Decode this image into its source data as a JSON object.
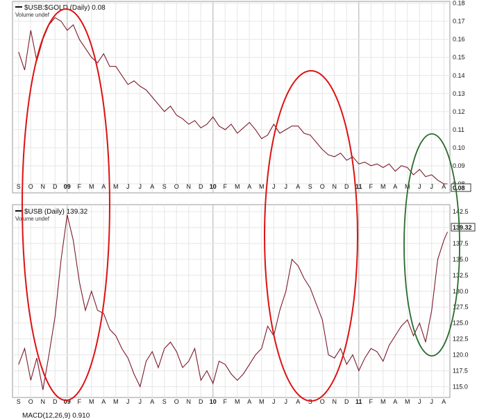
{
  "chart_data": [
    {
      "type": "line",
      "title": "$USB:$GOLD (Daily) 0.08",
      "subtitle": "Volume undef",
      "last_value_label": "0.08",
      "color": "#7a1a2a",
      "x_labels": [
        "S",
        "O",
        "N",
        "D",
        "09",
        "F",
        "M",
        "A",
        "M",
        "J",
        "J",
        "A",
        "S",
        "O",
        "N",
        "D",
        "10",
        "F",
        "M",
        "A",
        "M",
        "J",
        "J",
        "A",
        "S",
        "O",
        "N",
        "D",
        "11",
        "F",
        "M",
        "A",
        "M",
        "J",
        "J",
        "A"
      ],
      "y_ticks": [
        "0.18",
        "0.17",
        "0.16",
        "0.15",
        "0.14",
        "0.13",
        "0.12",
        "0.11",
        "0.10",
        "0.09",
        "0.08"
      ],
      "ylim": [
        0.075,
        0.181
      ],
      "series": [
        {
          "x": [
            0,
            0.5,
            1,
            1.5,
            2,
            2.5,
            3,
            3.5,
            4,
            4.5,
            5,
            5.5,
            6,
            6.5,
            7,
            7.5,
            8,
            8.5,
            9,
            9.5,
            10,
            10.5,
            11,
            11.5,
            12,
            12.5,
            13,
            13.5,
            14,
            14.5,
            15,
            15.5,
            16,
            16.5,
            17,
            17.5,
            18,
            18.5,
            19,
            19.5,
            20,
            20.5,
            21,
            21.5,
            22,
            22.5,
            23,
            23.5,
            24,
            24.5,
            25,
            25.5,
            26,
            26.5,
            27,
            27.5,
            28,
            28.5,
            29,
            29.5,
            30,
            30.5,
            31,
            31.5,
            32,
            32.5,
            33,
            33.5,
            34,
            34.5,
            35,
            35.3
          ],
          "values": [
            0.153,
            0.143,
            0.165,
            0.148,
            0.16,
            0.168,
            0.172,
            0.17,
            0.165,
            0.168,
            0.16,
            0.155,
            0.15,
            0.147,
            0.152,
            0.145,
            0.145,
            0.14,
            0.135,
            0.137,
            0.134,
            0.132,
            0.128,
            0.124,
            0.12,
            0.123,
            0.118,
            0.116,
            0.113,
            0.115,
            0.111,
            0.113,
            0.117,
            0.112,
            0.11,
            0.113,
            0.108,
            0.111,
            0.114,
            0.11,
            0.105,
            0.107,
            0.113,
            0.108,
            0.11,
            0.112,
            0.112,
            0.108,
            0.107,
            0.103,
            0.099,
            0.096,
            0.095,
            0.097,
            0.093,
            0.095,
            0.091,
            0.092,
            0.09,
            0.091,
            0.089,
            0.091,
            0.087,
            0.09,
            0.089,
            0.085,
            0.088,
            0.084,
            0.085,
            0.082,
            0.08,
            0.08
          ]
        }
      ]
    },
    {
      "type": "line",
      "title": "$USB (Daily) 139.32",
      "subtitle": "Volume undef",
      "last_value_label": "139.32",
      "color": "#7a1a2a",
      "x_labels": [
        "S",
        "O",
        "N",
        "D",
        "09",
        "F",
        "M",
        "A",
        "M",
        "J",
        "J",
        "A",
        "S",
        "O",
        "N",
        "D",
        "10",
        "F",
        "M",
        "A",
        "M",
        "J",
        "J",
        "A",
        "S",
        "O",
        "N",
        "D",
        "11",
        "F",
        "M",
        "A",
        "M",
        "J",
        "J",
        "A"
      ],
      "y_ticks": [
        "142.5",
        "140.0",
        "137.5",
        "135.0",
        "132.5",
        "130.0",
        "127.5",
        "125.0",
        "122.5",
        "120.0",
        "117.5",
        "115.0"
      ],
      "ylim": [
        113.3,
        143.6
      ],
      "series": [
        {
          "x": [
            0,
            0.5,
            1,
            1.5,
            2,
            2.5,
            3,
            3.5,
            4,
            4.5,
            5,
            5.5,
            6,
            6.5,
            7,
            7.5,
            8,
            8.5,
            9,
            9.5,
            10,
            10.5,
            11,
            11.5,
            12,
            12.5,
            13,
            13.5,
            14,
            14.5,
            15,
            15.5,
            16,
            16.5,
            17,
            17.5,
            18,
            18.5,
            19,
            19.5,
            20,
            20.5,
            21,
            21.5,
            22,
            22.5,
            23,
            23.5,
            24,
            24.5,
            25,
            25.5,
            26,
            26.5,
            27,
            27.5,
            28,
            28.5,
            29,
            29.5,
            30,
            30.5,
            31,
            31.5,
            32,
            32.5,
            33,
            33.5,
            34,
            34.5,
            35,
            35.3
          ],
          "values": [
            118.5,
            121,
            116,
            119.5,
            114.5,
            120,
            126,
            135,
            142,
            138,
            131.5,
            127,
            130,
            127,
            126.5,
            124,
            123,
            121,
            119.5,
            117,
            115,
            119,
            120.5,
            118,
            121,
            122,
            120.5,
            118,
            119,
            121,
            116,
            117.5,
            115.5,
            119,
            118.5,
            117,
            116,
            117,
            118.5,
            120,
            121,
            124.5,
            123,
            127,
            130,
            135,
            134,
            132,
            130.5,
            128,
            125.5,
            120,
            119.5,
            121,
            118.5,
            120,
            117.5,
            119.5,
            121,
            120.5,
            119,
            121.5,
            123,
            124.5,
            125.5,
            123,
            125,
            122,
            127,
            135,
            138,
            139.32
          ]
        }
      ]
    }
  ],
  "annotations": {
    "red_circle_color": "#dd1111",
    "green_circle_color": "#2a6a2a"
  },
  "bottom_panel_partial_title": "MACD(12,26,9) 0.910"
}
